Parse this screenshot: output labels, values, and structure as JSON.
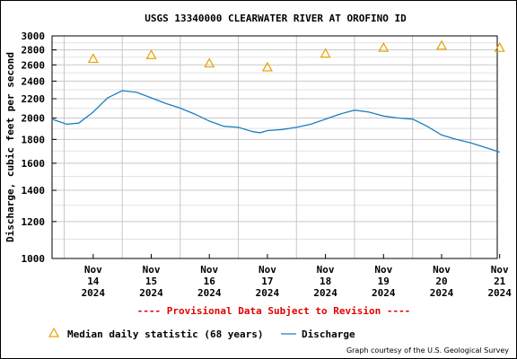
{
  "chart_data": {
    "type": "line",
    "title": "USGS 13340000 CLEARWATER RIVER AT OROFINO ID",
    "ylabel": "Discharge, cubic feet per second",
    "xlabel": "",
    "y_scale": "log",
    "ylim": [
      1000,
      3000
    ],
    "y_ticks": [
      "1000",
      "1200",
      "1400",
      "1600",
      "1800",
      "2000",
      "2200",
      "2400",
      "2600",
      "2800",
      "3000"
    ],
    "y_tick_values": [
      1000,
      1200,
      1400,
      1600,
      1800,
      2000,
      2200,
      2400,
      2600,
      2800,
      3000
    ],
    "x_range": [
      "2024-11-13T19:00",
      "2024-11-21T11:00"
    ],
    "x_ticks": [
      {
        "date": "2024-11-14T12:00",
        "month": "Nov",
        "day": "14",
        "year": "2024"
      },
      {
        "date": "2024-11-15T12:00",
        "month": "Nov",
        "day": "15",
        "year": "2024"
      },
      {
        "date": "2024-11-16T12:00",
        "month": "Nov",
        "day": "16",
        "year": "2024"
      },
      {
        "date": "2024-11-17T12:00",
        "month": "Nov",
        "day": "17",
        "year": "2024"
      },
      {
        "date": "2024-11-18T12:00",
        "month": "Nov",
        "day": "18",
        "year": "2024"
      },
      {
        "date": "2024-11-19T12:00",
        "month": "Nov",
        "day": "19",
        "year": "2024"
      },
      {
        "date": "2024-11-20T12:00",
        "month": "Nov",
        "day": "20",
        "year": "2024"
      },
      {
        "date": "2024-11-21T12:00",
        "month": "Nov",
        "day": "21",
        "year": "2024"
      }
    ],
    "grid": true,
    "series": [
      {
        "name": "Median daily statistic (68 years)",
        "kind": "marker",
        "marker": "triangle",
        "color": "#e6a000",
        "x": [
          "2024-11-14T12:00",
          "2024-11-15T12:00",
          "2024-11-16T12:00",
          "2024-11-17T12:00",
          "2024-11-18T12:00",
          "2024-11-19T12:00",
          "2024-11-20T12:00",
          "2024-11-21T12:00"
        ],
        "y": [
          2680,
          2730,
          2620,
          2570,
          2750,
          2830,
          2860,
          2830
        ]
      },
      {
        "name": "Discharge",
        "kind": "line",
        "color": "#1a7fc0",
        "x": [
          "2024-11-13T19:00",
          "2024-11-14T01:00",
          "2024-11-14T06:00",
          "2024-11-14T12:00",
          "2024-11-14T18:00",
          "2024-11-15T00:00",
          "2024-11-15T06:00",
          "2024-11-15T12:00",
          "2024-11-15T18:00",
          "2024-11-16T00:00",
          "2024-11-16T06:00",
          "2024-11-16T12:00",
          "2024-11-16T18:00",
          "2024-11-17T00:00",
          "2024-11-17T06:00",
          "2024-11-17T09:00",
          "2024-11-17T12:00",
          "2024-11-17T18:00",
          "2024-11-18T00:00",
          "2024-11-18T06:00",
          "2024-11-18T12:00",
          "2024-11-18T18:00",
          "2024-11-19T00:00",
          "2024-11-19T06:00",
          "2024-11-19T12:00",
          "2024-11-19T18:00",
          "2024-11-20T00:00",
          "2024-11-20T06:00",
          "2024-11-20T12:00",
          "2024-11-20T18:00",
          "2024-11-21T00:00",
          "2024-11-21T06:00",
          "2024-11-21T12:00"
        ],
        "y": [
          1990,
          1940,
          1950,
          2060,
          2210,
          2290,
          2270,
          2210,
          2150,
          2100,
          2040,
          1970,
          1920,
          1910,
          1870,
          1860,
          1880,
          1890,
          1910,
          1940,
          1990,
          2040,
          2080,
          2060,
          2020,
          2000,
          1990,
          1920,
          1840,
          1800,
          1770,
          1730,
          1690
        ]
      }
    ]
  },
  "notice": "---- Provisional Data Subject to Revision ----",
  "legend": {
    "median_label": "Median daily statistic (68 years)",
    "discharge_label": "Discharge"
  },
  "credit": "Graph courtesy of the U.S. Geological Survey",
  "colors": {
    "median": "#e6a000",
    "discharge": "#1a7fc0",
    "notice": "#e00000",
    "grid": "#c8c8c8"
  }
}
